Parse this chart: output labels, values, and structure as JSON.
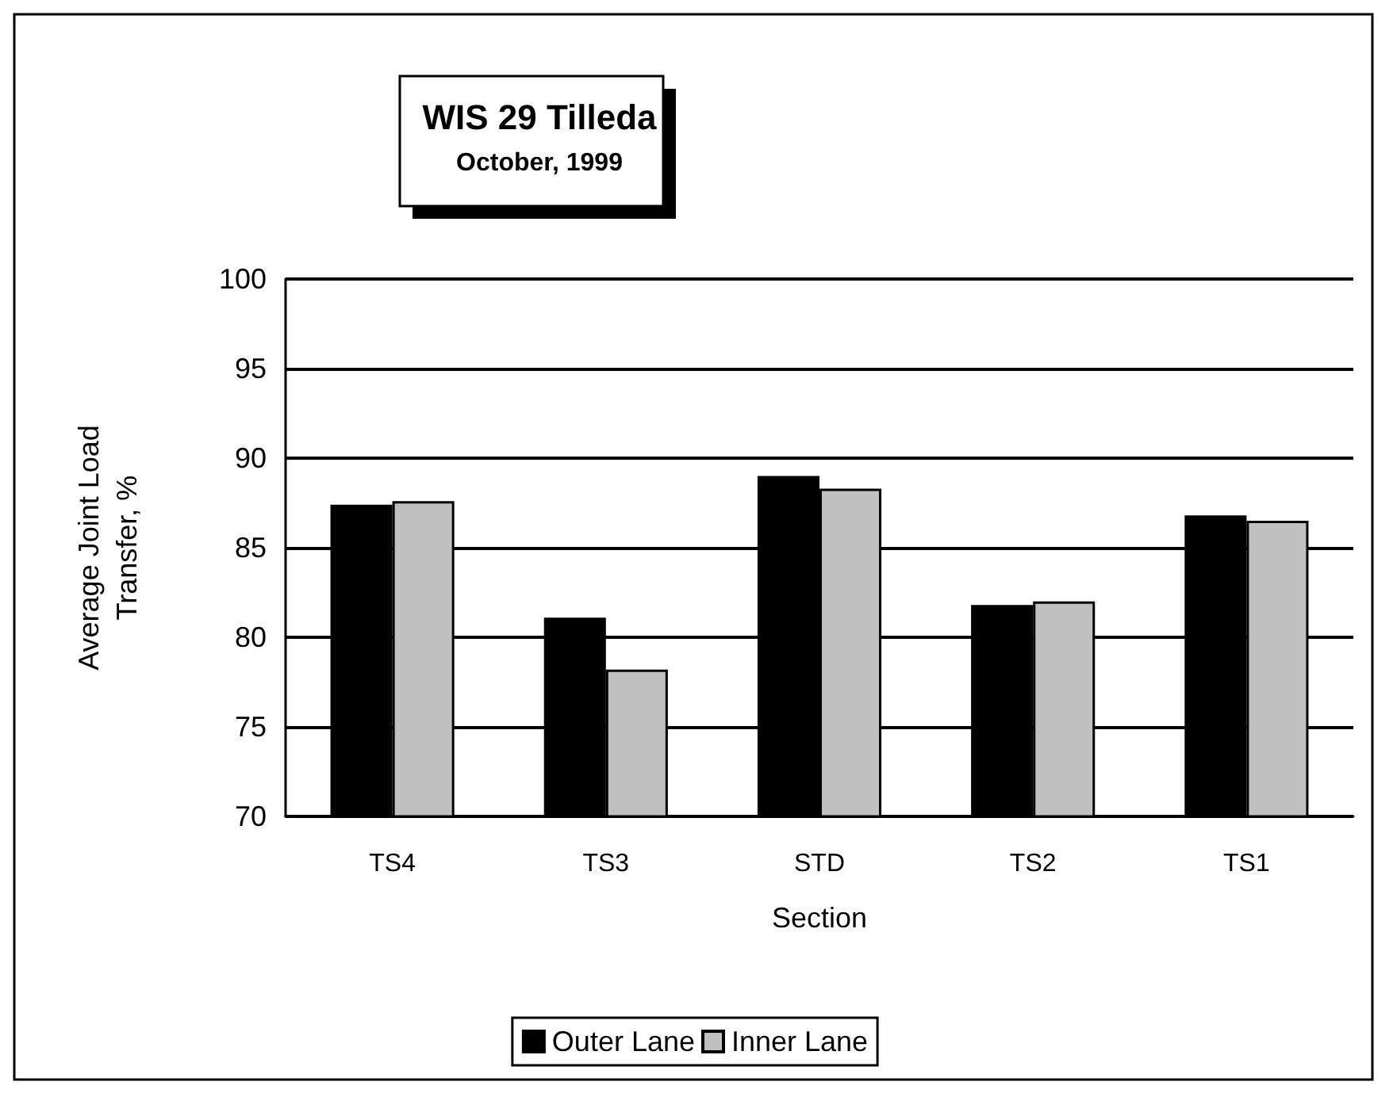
{
  "chart_data": {
    "type": "bar",
    "title": "WIS 29 Tilleda",
    "subtitle": "October, 1999",
    "xlabel": "Section",
    "ylabel": "Average Joint Load\nTransfer, %",
    "categories": [
      "TS4",
      "TS3",
      "STD",
      "TS2",
      "TS1"
    ],
    "series": [
      {
        "name": "Outer Lane",
        "color": "#000000",
        "values": [
          87.4,
          81.1,
          89.0,
          81.8,
          86.8
        ]
      },
      {
        "name": "Inner Lane",
        "color": "#c0c0c0",
        "values": [
          87.6,
          78.2,
          88.3,
          82.0,
          86.5
        ]
      }
    ],
    "ylim": [
      70,
      100
    ],
    "yticks": [
      70,
      75,
      80,
      85,
      90,
      95,
      100
    ],
    "grid": "y",
    "legend": "bottom"
  }
}
